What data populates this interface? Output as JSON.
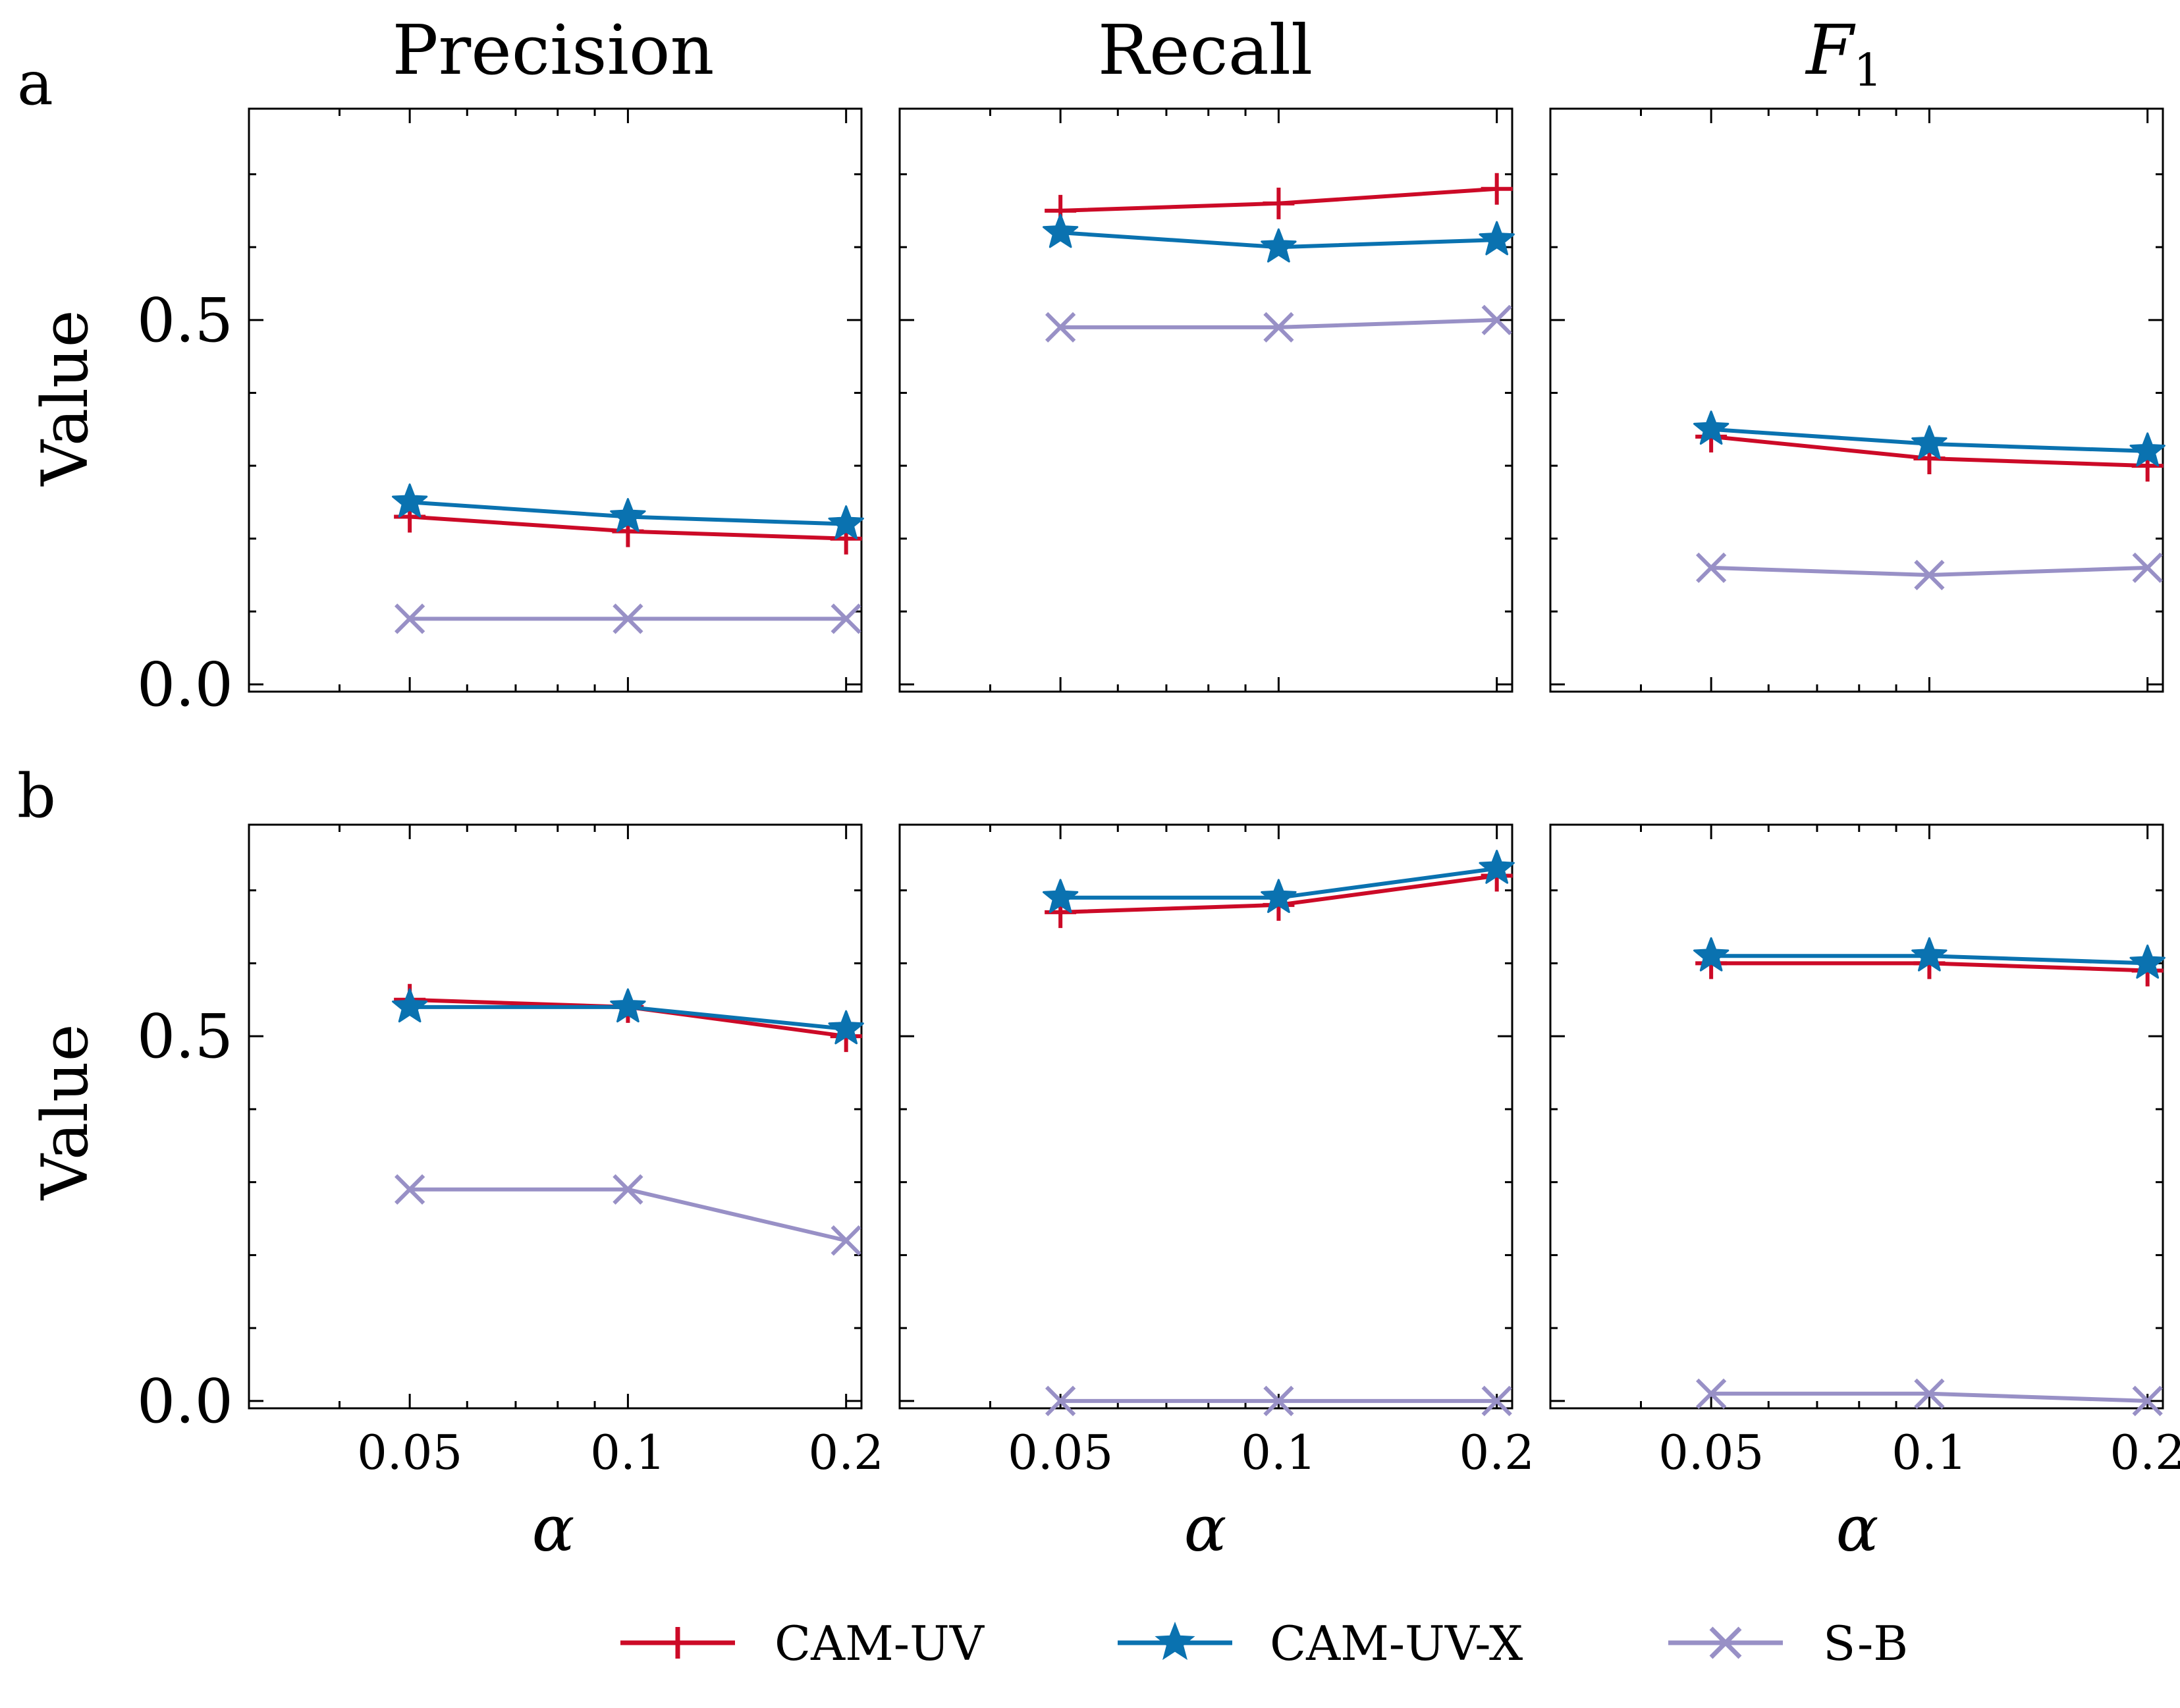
{
  "figure": {
    "row_labels": [
      "a",
      "b"
    ],
    "ylabel": "Value",
    "xlabel": "α",
    "legend": {
      "placement": "bottom-center",
      "entries": [
        "CAM-UV",
        "CAM-UV-X",
        "S-B"
      ]
    }
  },
  "chart_data": [
    {
      "type": "line",
      "panel": "a-precision",
      "title": "Precision",
      "row_label": "a",
      "x": [
        0.05,
        0.1,
        0.2
      ],
      "xtick_labels": [
        "0.05",
        "0.1",
        "0.2"
      ],
      "xlabel": "α",
      "ylabel": "Value",
      "ylim": [
        -0.01,
        0.79
      ],
      "yticks": [
        0.0,
        0.5
      ],
      "ytick_labels": [
        "0.0",
        "0.5"
      ],
      "series": [
        {
          "name": "CAM-UV",
          "color": "#cc0a27",
          "marker": "plus",
          "values": [
            0.23,
            0.21,
            0.2
          ]
        },
        {
          "name": "CAM-UV-X",
          "color": "#0a72b0",
          "marker": "star",
          "values": [
            0.25,
            0.23,
            0.22
          ]
        },
        {
          "name": "S-B",
          "color": "#9890c6",
          "marker": "x",
          "values": [
            0.09,
            0.09,
            0.09
          ]
        }
      ]
    },
    {
      "type": "line",
      "panel": "a-recall",
      "title": "Recall",
      "row_label": "a",
      "x": [
        0.05,
        0.1,
        0.2
      ],
      "xtick_labels": [
        "0.05",
        "0.1",
        "0.2"
      ],
      "xlabel": "α",
      "ylabel": "Value",
      "ylim": [
        -0.01,
        0.79
      ],
      "yticks": [
        0.0,
        0.5
      ],
      "ytick_labels": [
        "0.0",
        "0.5"
      ],
      "series": [
        {
          "name": "CAM-UV",
          "color": "#cc0a27",
          "marker": "plus",
          "values": [
            0.65,
            0.66,
            0.68
          ]
        },
        {
          "name": "CAM-UV-X",
          "color": "#0a72b0",
          "marker": "star",
          "values": [
            0.62,
            0.6,
            0.61
          ]
        },
        {
          "name": "S-B",
          "color": "#9890c6",
          "marker": "x",
          "values": [
            0.49,
            0.49,
            0.5
          ]
        }
      ]
    },
    {
      "type": "line",
      "panel": "a-f1",
      "title": "F1",
      "title_main": "F",
      "title_sub": "1",
      "row_label": "a",
      "x": [
        0.05,
        0.1,
        0.2
      ],
      "xtick_labels": [
        "0.05",
        "0.1",
        "0.2"
      ],
      "xlabel": "α",
      "ylabel": "Value",
      "ylim": [
        -0.01,
        0.79
      ],
      "yticks": [
        0.0,
        0.5
      ],
      "ytick_labels": [
        "0.0",
        "0.5"
      ],
      "series": [
        {
          "name": "CAM-UV",
          "color": "#cc0a27",
          "marker": "plus",
          "values": [
            0.34,
            0.31,
            0.3
          ]
        },
        {
          "name": "CAM-UV-X",
          "color": "#0a72b0",
          "marker": "star",
          "values": [
            0.35,
            0.33,
            0.32
          ]
        },
        {
          "name": "S-B",
          "color": "#9890c6",
          "marker": "x",
          "values": [
            0.16,
            0.15,
            0.16
          ]
        }
      ]
    },
    {
      "type": "line",
      "panel": "b-precision",
      "title": "",
      "row_label": "b",
      "x": [
        0.05,
        0.1,
        0.2
      ],
      "xtick_labels": [
        "0.05",
        "0.1",
        "0.2"
      ],
      "xlabel": "α",
      "ylabel": "Value",
      "ylim": [
        -0.01,
        0.79
      ],
      "yticks": [
        0.0,
        0.5
      ],
      "ytick_labels": [
        "0.0",
        "0.5"
      ],
      "series": [
        {
          "name": "CAM-UV",
          "color": "#cc0a27",
          "marker": "plus",
          "values": [
            0.55,
            0.54,
            0.5
          ]
        },
        {
          "name": "CAM-UV-X",
          "color": "#0a72b0",
          "marker": "star",
          "values": [
            0.54,
            0.54,
            0.51
          ]
        },
        {
          "name": "S-B",
          "color": "#9890c6",
          "marker": "x",
          "values": [
            0.29,
            0.29,
            0.22
          ]
        }
      ]
    },
    {
      "type": "line",
      "panel": "b-recall",
      "title": "",
      "row_label": "b",
      "x": [
        0.05,
        0.1,
        0.2
      ],
      "xtick_labels": [
        "0.05",
        "0.1",
        "0.2"
      ],
      "xlabel": "α",
      "ylabel": "Value",
      "ylim": [
        -0.01,
        0.79
      ],
      "yticks": [
        0.0,
        0.5
      ],
      "ytick_labels": [
        "0.0",
        "0.5"
      ],
      "series": [
        {
          "name": "CAM-UV",
          "color": "#cc0a27",
          "marker": "plus",
          "values": [
            0.67,
            0.68,
            0.72
          ]
        },
        {
          "name": "CAM-UV-X",
          "color": "#0a72b0",
          "marker": "star",
          "values": [
            0.69,
            0.69,
            0.73
          ]
        },
        {
          "name": "S-B",
          "color": "#9890c6",
          "marker": "x",
          "values": [
            0.0,
            0.0,
            0.0
          ]
        }
      ]
    },
    {
      "type": "line",
      "panel": "b-f1",
      "title": "",
      "row_label": "b",
      "x": [
        0.05,
        0.1,
        0.2
      ],
      "xtick_labels": [
        "0.05",
        "0.1",
        "0.2"
      ],
      "xlabel": "α",
      "ylabel": "Value",
      "ylim": [
        -0.01,
        0.79
      ],
      "yticks": [
        0.0,
        0.5
      ],
      "ytick_labels": [
        "0.0",
        "0.5"
      ],
      "series": [
        {
          "name": "CAM-UV",
          "color": "#cc0a27",
          "marker": "plus",
          "values": [
            0.6,
            0.6,
            0.59
          ]
        },
        {
          "name": "CAM-UV-X",
          "color": "#0a72b0",
          "marker": "star",
          "values": [
            0.61,
            0.61,
            0.6
          ]
        },
        {
          "name": "S-B",
          "color": "#9890c6",
          "marker": "x",
          "values": [
            0.01,
            0.01,
            0.0
          ]
        }
      ]
    }
  ]
}
